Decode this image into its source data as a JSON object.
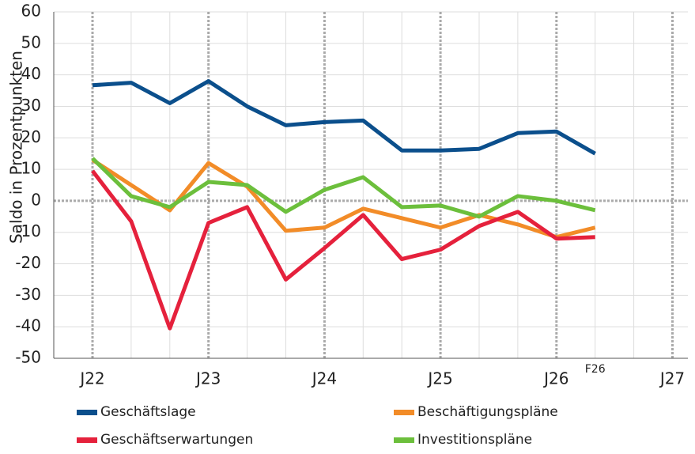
{
  "chart_data": {
    "type": "line",
    "y_label": "Saldo in Prozentpunkten",
    "categories": [
      "J22",
      null,
      null,
      "J23",
      null,
      null,
      "J24",
      null,
      null,
      "J25",
      null,
      null,
      "J26",
      null,
      null,
      "J27"
    ],
    "annotations": [
      {
        "text": "F26",
        "category": 13
      }
    ],
    "series": [
      {
        "name": "Geschäftslage",
        "color": "#0b4f8c",
        "values": [
          36.7,
          37.5,
          31,
          38,
          30,
          24,
          25,
          25.5,
          16,
          16,
          16.5,
          21.5,
          22,
          15,
          null,
          null
        ]
      },
      {
        "name": "Beschäftigungspläne",
        "color": "#f28c28",
        "values": [
          13,
          5,
          -3,
          12,
          4.5,
          -9.5,
          -8.5,
          -2.5,
          -5.5,
          -8.5,
          -4.5,
          -7.5,
          -11.5,
          -8.5,
          null,
          null
        ]
      },
      {
        "name": "Geschäftserwartungen",
        "color": "#e5213c",
        "values": [
          9.5,
          -6.5,
          -40.5,
          -7,
          -2,
          -25,
          -15,
          -4.5,
          -18.5,
          -15.5,
          -8,
          -3.5,
          -12,
          -11.5,
          null,
          null
        ]
      },
      {
        "name": "Investitionspläne",
        "color": "#6cbf3c",
        "values": [
          13.5,
          1.5,
          -2,
          6,
          5,
          -3.5,
          3.5,
          7.5,
          -2,
          -1.5,
          -5,
          1.5,
          0,
          -3,
          null,
          null
        ]
      }
    ],
    "ylim": [
      -50,
      60
    ],
    "yticks": [
      -50,
      -40,
      -30,
      -20,
      -10,
      0,
      10,
      20,
      30,
      40,
      50,
      60
    ],
    "grid": true
  }
}
